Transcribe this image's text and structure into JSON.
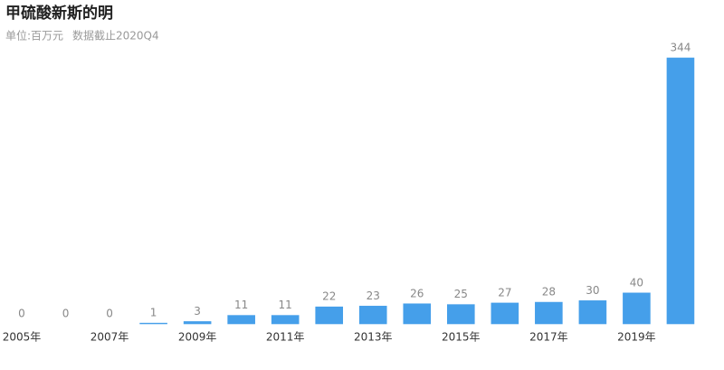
{
  "chart_data": {
    "type": "bar",
    "title": "甲硫酸新斯的明",
    "subtitle": "单位:百万元",
    "note": "数据截止2020Q4",
    "categories": [
      "2005年",
      null,
      "2007年",
      null,
      "2009年",
      null,
      "2011年",
      null,
      "2013年",
      null,
      "2015年",
      null,
      "2017年",
      null,
      "2019年",
      null
    ],
    "values": [
      0,
      0,
      0,
      1,
      3,
      11,
      11,
      22,
      23,
      26,
      25,
      27,
      28,
      30,
      40,
      344
    ],
    "color": "#459fea"
  }
}
